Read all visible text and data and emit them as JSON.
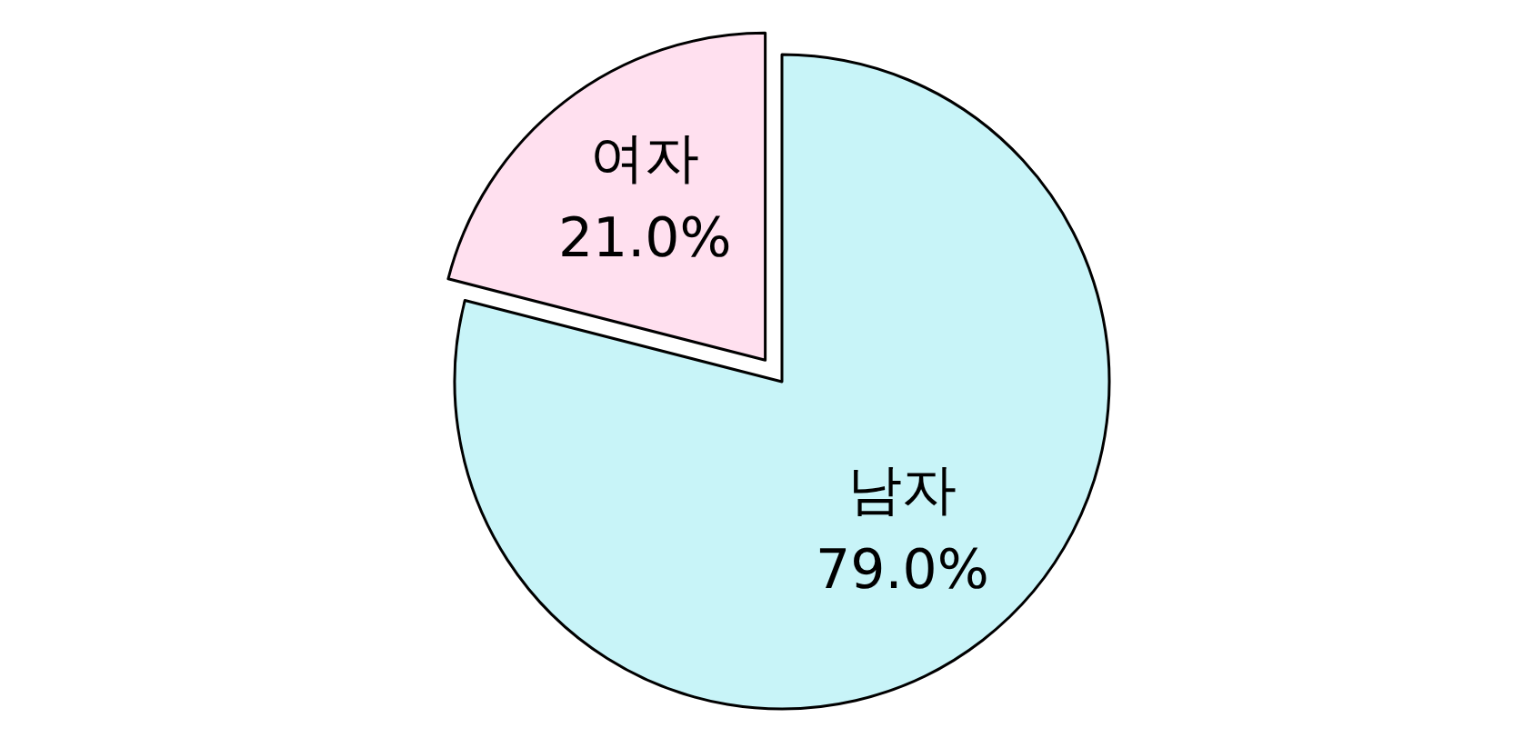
{
  "chart_data": {
    "type": "pie",
    "categories": [
      "여자",
      "남자"
    ],
    "values": [
      21.0,
      79.0
    ],
    "colors": [
      "#ffe0ef",
      "#c8f4f8"
    ],
    "value_labels": [
      "21.0%",
      "79.0%"
    ]
  }
}
